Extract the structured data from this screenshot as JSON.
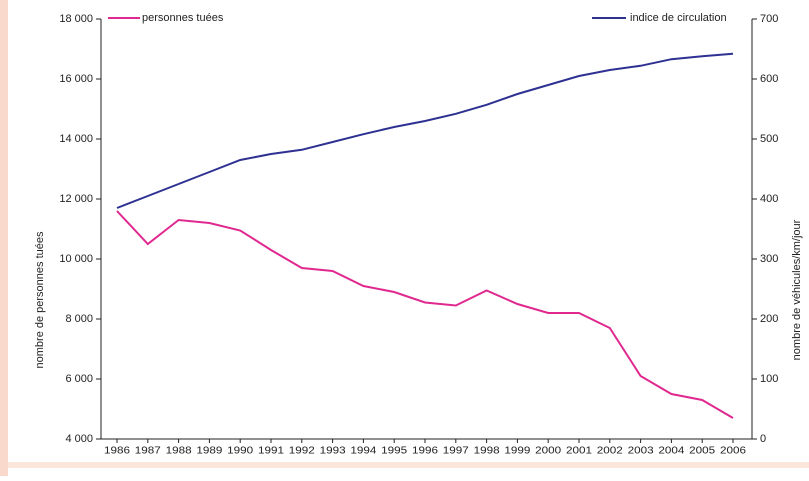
{
  "chart_data": {
    "type": "line",
    "y_label": "nombre de personnes tuées",
    "y2_label": "nombre de véhicules/km/jour",
    "categories": [
      "1986",
      "1987",
      "1988",
      "1989",
      "1990",
      "1991",
      "1992",
      "1993",
      "1994",
      "1995",
      "1996",
      "1997",
      "1998",
      "1999",
      "2000",
      "2001",
      "2002",
      "2003",
      "2004",
      "2005",
      "2006"
    ],
    "series": [
      {
        "name": "personnes tuées",
        "color": "#e0288f",
        "values": [
          11600,
          10500,
          11300,
          11200,
          10950,
          10300,
          9700,
          9600,
          9100,
          8900,
          8550,
          8450,
          8950,
          8500,
          8200,
          8200,
          7700,
          6100,
          5500,
          5300,
          4700
        ]
      },
      {
        "name": "indice de circulation",
        "color": "#2e3192",
        "axis": "y2",
        "values": [
          385,
          405,
          425,
          445,
          465,
          475,
          482,
          495,
          508,
          520,
          530,
          542,
          557,
          575,
          590,
          605,
          615,
          622,
          633,
          638,
          642
        ]
      }
    ],
    "ylim": [
      4000,
      18000
    ],
    "yticks": [
      {
        "value": 4000,
        "label": "4 000"
      },
      {
        "value": 6000,
        "label": "6 000"
      },
      {
        "value": 8000,
        "label": "8 000"
      },
      {
        "value": 10000,
        "label": "10 000"
      },
      {
        "value": 12000,
        "label": "12 000"
      },
      {
        "value": 14000,
        "label": "14 000"
      },
      {
        "value": 16000,
        "label": "16 000"
      },
      {
        "value": 18000,
        "label": "18 000"
      }
    ],
    "y2lim": [
      0,
      700
    ],
    "y2ticks": [
      0,
      100,
      200,
      300,
      400,
      500,
      600,
      700
    ]
  }
}
